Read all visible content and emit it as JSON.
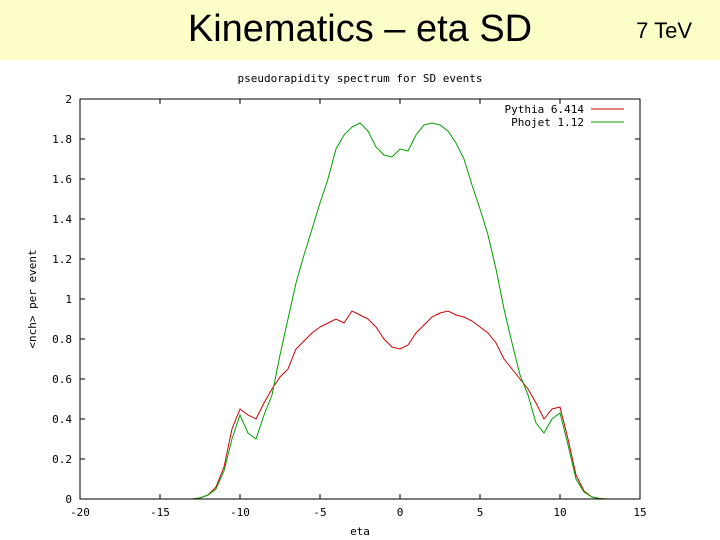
{
  "slide": {
    "title": "Kinematics – eta SD",
    "energy": "7 TeV"
  },
  "chart_data": {
    "type": "line",
    "title": "pseudorapidity spectrum for SD events",
    "xlabel": "eta",
    "ylabel": "<nch> per event",
    "xlim": [
      -20,
      15
    ],
    "ylim": [
      0,
      2
    ],
    "xticks": [
      -20,
      -15,
      -10,
      -5,
      0,
      5,
      10,
      15
    ],
    "yticks": [
      0,
      0.2,
      0.4,
      0.6,
      0.8,
      1,
      1.2,
      1.4,
      1.6,
      1.8,
      2
    ],
    "ytick_labels": [
      "0",
      "0.2",
      "0.4",
      "0.6",
      "0.8",
      "1",
      "1.2",
      "1.4",
      "1.6",
      "1.8",
      "2"
    ],
    "legend_position": "top-right",
    "series": [
      {
        "name": "Pythia 6.414",
        "color": "#cc0000",
        "x": [
          -13.5,
          -13,
          -12.5,
          -12,
          -11.5,
          -11,
          -10.5,
          -10,
          -9.5,
          -9,
          -8.5,
          -8,
          -7.5,
          -7,
          -6.5,
          -6,
          -5.5,
          -5,
          -4.5,
          -4,
          -3.5,
          -3,
          -2.5,
          -2,
          -1.5,
          -1,
          -0.5,
          0,
          0.5,
          1,
          1.5,
          2,
          2.5,
          3,
          3.5,
          4,
          4.5,
          5,
          5.5,
          6,
          6.5,
          7,
          7.5,
          8,
          8.5,
          9,
          9.5,
          10,
          10.5,
          11,
          11.5,
          12,
          12.5,
          13
        ],
        "y": [
          0,
          0,
          0.005,
          0.02,
          0.06,
          0.16,
          0.35,
          0.45,
          0.42,
          0.4,
          0.48,
          0.55,
          0.61,
          0.65,
          0.75,
          0.79,
          0.83,
          0.86,
          0.88,
          0.9,
          0.88,
          0.94,
          0.92,
          0.9,
          0.86,
          0.8,
          0.76,
          0.75,
          0.77,
          0.83,
          0.87,
          0.91,
          0.93,
          0.94,
          0.92,
          0.91,
          0.89,
          0.86,
          0.83,
          0.78,
          0.7,
          0.65,
          0.6,
          0.55,
          0.48,
          0.4,
          0.45,
          0.46,
          0.3,
          0.12,
          0.04,
          0.01,
          0.002,
          0
        ]
      },
      {
        "name": "Phojet 1.12",
        "color": "#00a000",
        "x": [
          -13.5,
          -13,
          -12.5,
          -12,
          -11.5,
          -11,
          -10.5,
          -10,
          -9.5,
          -9,
          -8.5,
          -8,
          -7.5,
          -7,
          -6.5,
          -6,
          -5.5,
          -5,
          -4.5,
          -4,
          -3.5,
          -3,
          -2.5,
          -2,
          -1.5,
          -1,
          -0.5,
          0,
          0.5,
          1,
          1.5,
          2,
          2.5,
          3,
          3.5,
          4,
          4.5,
          5,
          5.5,
          6,
          6.5,
          7,
          7.5,
          8,
          8.5,
          9,
          9.5,
          10,
          10.5,
          11,
          11.5,
          12,
          12.5,
          13
        ],
        "y": [
          0,
          0,
          0.005,
          0.02,
          0.05,
          0.14,
          0.3,
          0.42,
          0.33,
          0.3,
          0.42,
          0.52,
          0.72,
          0.9,
          1.08,
          1.22,
          1.35,
          1.48,
          1.6,
          1.75,
          1.82,
          1.86,
          1.88,
          1.84,
          1.76,
          1.72,
          1.71,
          1.75,
          1.74,
          1.82,
          1.87,
          1.88,
          1.87,
          1.84,
          1.78,
          1.7,
          1.57,
          1.45,
          1.32,
          1.15,
          0.95,
          0.78,
          0.62,
          0.52,
          0.38,
          0.33,
          0.4,
          0.43,
          0.27,
          0.1,
          0.035,
          0.01,
          0.002,
          0
        ]
      }
    ]
  }
}
